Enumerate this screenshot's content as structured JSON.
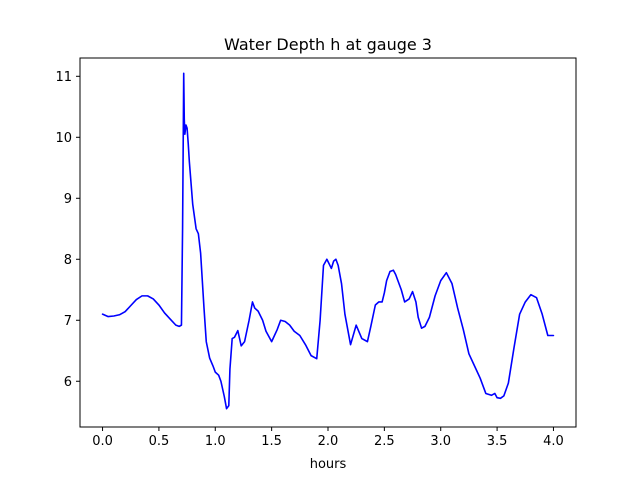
{
  "chart_data": {
    "type": "line",
    "title": "Water Depth h at gauge 3",
    "xlabel": "hours",
    "ylabel": "",
    "xlim": [
      -0.2,
      4.2
    ],
    "ylim": [
      5.25,
      11.3
    ],
    "x_ticks": [
      0.0,
      0.5,
      1.0,
      1.5,
      2.0,
      2.5,
      3.0,
      3.5,
      4.0
    ],
    "x_tick_labels": [
      "0.0",
      "0.5",
      "1.0",
      "1.5",
      "2.0",
      "2.5",
      "3.0",
      "3.5",
      "4.0"
    ],
    "y_ticks": [
      6,
      7,
      8,
      9,
      10,
      11
    ],
    "y_tick_labels": [
      "6",
      "7",
      "8",
      "9",
      "10",
      "11"
    ],
    "grid": false,
    "legend": "none",
    "series": [
      {
        "color": "#0000ff",
        "x": [
          0.0,
          0.05,
          0.1,
          0.15,
          0.2,
          0.25,
          0.3,
          0.35,
          0.4,
          0.45,
          0.5,
          0.55,
          0.6,
          0.65,
          0.68,
          0.7,
          0.71,
          0.72,
          0.725,
          0.73,
          0.74,
          0.75,
          0.76,
          0.77,
          0.8,
          0.83,
          0.85,
          0.87,
          0.9,
          0.92,
          0.95,
          0.98,
          1.0,
          1.03,
          1.05,
          1.08,
          1.1,
          1.12,
          1.13,
          1.15,
          1.17,
          1.2,
          1.23,
          1.26,
          1.3,
          1.33,
          1.35,
          1.38,
          1.42,
          1.45,
          1.5,
          1.55,
          1.58,
          1.62,
          1.66,
          1.7,
          1.75,
          1.8,
          1.85,
          1.9,
          1.93,
          1.96,
          1.99,
          2.03,
          2.05,
          2.07,
          2.09,
          2.12,
          2.15,
          2.2,
          2.25,
          2.3,
          2.35,
          2.38,
          2.42,
          2.45,
          2.48,
          2.5,
          2.52,
          2.55,
          2.58,
          2.6,
          2.62,
          2.65,
          2.68,
          2.72,
          2.75,
          2.78,
          2.8,
          2.83,
          2.86,
          2.9,
          2.95,
          3.0,
          3.05,
          3.1,
          3.15,
          3.2,
          3.25,
          3.3,
          3.35,
          3.4,
          3.45,
          3.48,
          3.5,
          3.53,
          3.56,
          3.6,
          3.65,
          3.7,
          3.75,
          3.8,
          3.85,
          3.9,
          3.95,
          4.0
        ],
        "values": [
          7.1,
          7.06,
          7.07,
          7.09,
          7.14,
          7.24,
          7.34,
          7.4,
          7.4,
          7.35,
          7.25,
          7.12,
          7.02,
          6.92,
          6.9,
          6.92,
          8.5,
          11.05,
          10.3,
          10.05,
          10.2,
          10.15,
          9.9,
          9.6,
          8.9,
          8.5,
          8.42,
          8.1,
          7.2,
          6.65,
          6.38,
          6.25,
          6.15,
          6.1,
          6.0,
          5.75,
          5.55,
          5.6,
          6.2,
          6.7,
          6.72,
          6.83,
          6.58,
          6.65,
          7.0,
          7.3,
          7.2,
          7.15,
          7.0,
          6.82,
          6.65,
          6.85,
          7.0,
          6.98,
          6.92,
          6.82,
          6.75,
          6.6,
          6.42,
          6.37,
          7.0,
          7.9,
          8.0,
          7.85,
          7.97,
          8.0,
          7.9,
          7.6,
          7.1,
          6.6,
          6.92,
          6.7,
          6.65,
          6.9,
          7.25,
          7.3,
          7.3,
          7.45,
          7.65,
          7.8,
          7.82,
          7.75,
          7.65,
          7.5,
          7.3,
          7.35,
          7.47,
          7.3,
          7.05,
          6.87,
          6.9,
          7.05,
          7.4,
          7.65,
          7.78,
          7.6,
          7.2,
          6.85,
          6.45,
          6.25,
          6.05,
          5.8,
          5.77,
          5.8,
          5.73,
          5.72,
          5.76,
          5.97,
          6.55,
          7.1,
          7.3,
          7.42,
          7.37,
          7.1,
          6.75,
          6.75
        ]
      }
    ]
  }
}
